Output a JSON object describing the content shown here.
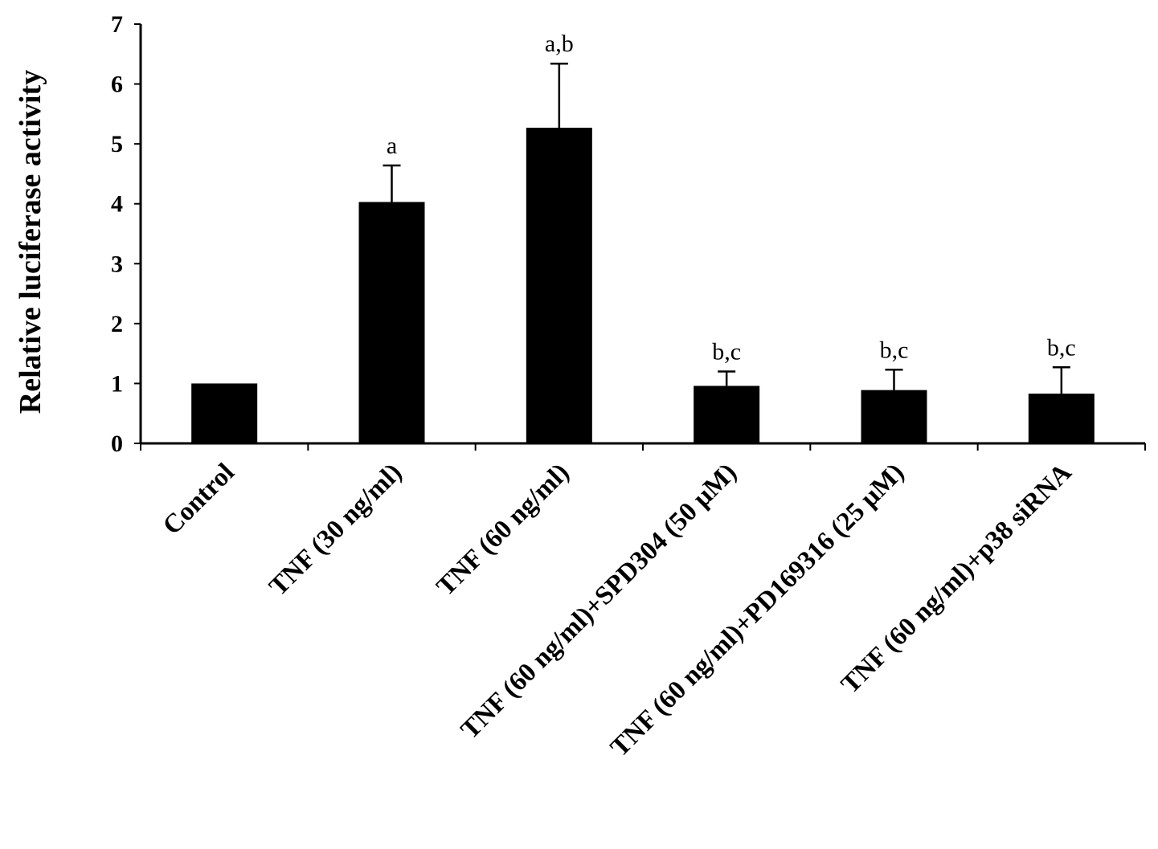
{
  "chart_data": {
    "type": "bar",
    "title": "",
    "xlabel": "",
    "ylabel": "Relative luciferase activity",
    "ylim": [
      0,
      7
    ],
    "yticks": [
      "0",
      "1",
      "2",
      "3",
      "4",
      "5",
      "6",
      "7"
    ],
    "grid": false,
    "legend": "none",
    "bar_color": "#000000",
    "categories": [
      "Control",
      "TNF (30 ng/ml)",
      "TNF (60 ng/ml)",
      "TNF (60 ng/ml)+SPD304 (50 μM)",
      "TNF (60 ng/ml)+PD169316 (25 μM)",
      "TNF (60 ng/ml)+p38 siRNA"
    ],
    "values": [
      1.0,
      4.03,
      5.27,
      0.96,
      0.89,
      0.83
    ],
    "error_upper": [
      0,
      0.61,
      1.07,
      0.24,
      0.34,
      0.44
    ],
    "annotations": [
      "",
      "a",
      "a,b",
      "b,c",
      "b,c",
      "b,c"
    ]
  }
}
